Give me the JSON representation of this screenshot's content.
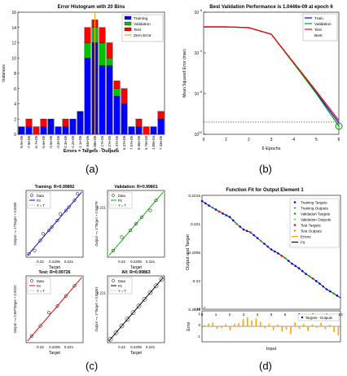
{
  "panels": {
    "a": {
      "caption": "(a)",
      "chart_data": {
        "type": "bar",
        "title": "Error Histogram with 20 Bins",
        "xlabel": "Errors = Targets - Outputs",
        "ylabel": "Instances",
        "ylim": [
          0,
          16
        ],
        "yticks": [
          "0",
          "2",
          "4",
          "6",
          "8",
          "10",
          "12",
          "14",
          "16"
        ],
        "categories": [
          "-8.9e-05",
          "-7.8e-05",
          "-6.7e-05",
          "-5.6e-05",
          "-4.5e-05",
          "-3.4e-05",
          "-2.3e-05",
          "-1.2e-05",
          "-1.1e-06",
          "9.84e-06",
          "2.08e-05",
          "3.17e-05",
          "4.27e-05",
          "5.37e-05",
          "6.47e-05",
          "7.57e-05",
          "8.66e-05",
          "9.76e-05",
          "1.09e-04",
          "7.33e-05"
        ],
        "series": [
          {
            "name": "Training",
            "color": "#0000ff",
            "values": [
              1,
              1,
              0,
              1,
              2,
              1,
              1,
              2,
              3,
              10,
              12,
              9,
              9,
              5,
              4,
              1,
              1,
              0,
              1,
              2
            ]
          },
          {
            "name": "Validation",
            "color": "#00c000",
            "values": [
              0,
              0,
              0,
              0,
              0,
              0,
              0,
              0,
              0,
              2,
              2,
              3,
              1,
              1,
              0,
              0,
              0,
              0,
              0,
              0
            ]
          },
          {
            "name": "Test",
            "color": "#ff0000",
            "values": [
              0,
              1,
              1,
              1,
              0,
              0,
              1,
              0,
              0,
              2,
              1,
              2,
              2,
              1,
              2,
              0,
              1,
              1,
              0,
              1
            ]
          }
        ],
        "zero_error_label": "Zero Error",
        "zero_error_color": "#ffa500",
        "zero_error_bin": 10,
        "legend_position": "top-right"
      }
    },
    "b": {
      "caption": "(b)",
      "chart_data": {
        "type": "line",
        "title": "Best Validation Performance is 1.0446e-09 at epoch 6",
        "xlabel": "6 Epochs",
        "ylabel": "Mean Squared Error (mse)",
        "x": [
          0,
          1,
          2,
          3,
          4,
          5,
          6
        ],
        "xticks": [
          "0",
          "1",
          "2",
          "3",
          "4",
          "5",
          "6"
        ],
        "ylim_log10": [
          -10,
          5
        ],
        "yticks": [
          {
            "label": "10",
            "exp": "5",
            "value_log10": 5
          },
          {
            "label": "10",
            "exp": "0",
            "value_log10": 0
          },
          {
            "label": "10",
            "exp": "-5",
            "value_log10": -5
          },
          {
            "label": "10",
            "exp": "-10",
            "value_log10": -10
          }
        ],
        "scale": "log",
        "series": [
          {
            "name": "Train",
            "color": "#0000ff",
            "values_log10": [
              3.2,
              3.2,
              3.1,
              2.3,
              -1.3,
              -4.9,
              -8.6
            ]
          },
          {
            "name": "Validation",
            "color": "#00a000",
            "values_log10": [
              3.2,
              3.2,
              3.1,
              2.3,
              -1.3,
              -5.0,
              -9.0
            ]
          },
          {
            "name": "Test",
            "color": "#ff0000",
            "values_log10": [
              3.2,
              3.2,
              3.1,
              2.3,
              -1.2,
              -4.7,
              -8.3
            ]
          }
        ],
        "best": {
          "label": "Best",
          "x": 6,
          "value_log10": -9.0,
          "color": "#00a000"
        },
        "goal_log10": -8.5,
        "legend_position": "top-right"
      }
    },
    "c": {
      "caption": "(c)",
      "chart_data": [
        {
          "type": "scatter",
          "title": "Training: R=0.99892",
          "xlabel": "Target",
          "ylabel": "Output ~= 1*Target + 0.0005",
          "xticks": [
            "0.22",
            "0.2205",
            "0.221"
          ],
          "yticks": [],
          "fit_color": "#0000ff",
          "legend": [
            "Data",
            "Fit",
            "Y = T"
          ],
          "points": [
            [
              0.2196,
              0.2196
            ],
            [
              0.2198,
              0.2197
            ],
            [
              0.22,
              0.22
            ],
            [
              0.2201,
              0.2202
            ],
            [
              0.2203,
              0.2203
            ],
            [
              0.2204,
              0.2204
            ],
            [
              0.2206,
              0.2206
            ],
            [
              0.2207,
              0.2208
            ],
            [
              0.2209,
              0.2209
            ],
            [
              0.221,
              0.221
            ],
            [
              0.2212,
              0.2212
            ],
            [
              0.2213,
              0.2214
            ]
          ]
        },
        {
          "type": "scatter",
          "title": "Validation: R=0.99801",
          "xlabel": "Target",
          "ylabel": "Output ~= 1*Target + 0.00079",
          "xticks": [
            "0.22",
            "0.2205",
            "0.221"
          ],
          "yticks": [
            "0.221"
          ],
          "fit_color": "#00c000",
          "legend": [
            "Data",
            "Fit",
            "Y = T"
          ],
          "points": [
            [
              0.2197,
              0.2197
            ],
            [
              0.22,
              0.2201
            ],
            [
              0.2203,
              0.2203
            ],
            [
              0.2205,
              0.2205
            ],
            [
              0.2207,
              0.2207
            ],
            [
              0.221,
              0.2209
            ],
            [
              0.2212,
              0.2212
            ]
          ]
        },
        {
          "type": "scatter",
          "title": "Test: R=0.99726",
          "xlabel": "Target",
          "ylabel": "Output ~= 0.99*Target + 0.0022",
          "xticks": [
            "0.22",
            "0.2205",
            "0.221"
          ],
          "yticks": [],
          "fit_color": "#ff0000",
          "legend": [
            "Data",
            "Fit",
            "Y = T"
          ],
          "points": [
            [
              0.2197,
              0.2197
            ],
            [
              0.22,
              0.22
            ],
            [
              0.2203,
              0.2204
            ],
            [
              0.2206,
              0.2206
            ],
            [
              0.2209,
              0.2209
            ],
            [
              0.2212,
              0.2212
            ]
          ]
        },
        {
          "type": "scatter",
          "title": "All: R=0.99863",
          "xlabel": "Target",
          "ylabel": "Output ~= 1*Target + 0.00051",
          "xticks": [
            "0.22",
            "0.2205",
            "0.221"
          ],
          "yticks": [
            "0.221"
          ],
          "fit_color": "#000000",
          "legend": [
            "Data",
            "Fit",
            "Y = T"
          ],
          "points": [
            [
              0.2196,
              0.2196
            ],
            [
              0.2198,
              0.2198
            ],
            [
              0.22,
              0.22
            ],
            [
              0.2202,
              0.2202
            ],
            [
              0.2204,
              0.2204
            ],
            [
              0.2206,
              0.2206
            ],
            [
              0.2208,
              0.2208
            ],
            [
              0.221,
              0.221
            ],
            [
              0.2212,
              0.2212
            ],
            [
              0.2214,
              0.2214
            ]
          ]
        }
      ]
    },
    "d": {
      "caption": "(d)",
      "chart_data": {
        "type": "line",
        "title": "Function Fit for Output Element 1",
        "ylabel": "Output and Target",
        "xlabel": "Input",
        "ylim": [
          0.2195,
          0.2215
        ],
        "yticks": [
          "0.2215",
          "0.221",
          "0.2205",
          "0.22",
          "0.2195"
        ],
        "xticks": [
          "0",
          "1",
          "2",
          "3",
          "4",
          "5",
          "6",
          "7",
          "8",
          "9",
          "10"
        ],
        "legend": [
          {
            "label": "Training Targets",
            "color": "#0000ff",
            "marker": "dot"
          },
          {
            "label": "Training Outputs",
            "color": "#0000ff",
            "marker": "plus"
          },
          {
            "label": "Validation Targets",
            "color": "#00c000",
            "marker": "dot"
          },
          {
            "label": "Validation Outputs",
            "color": "#00c000",
            "marker": "plus"
          },
          {
            "label": "Test Targets",
            "color": "#ff0000",
            "marker": "dot"
          },
          {
            "label": "Test Outputs",
            "color": "#ff0000",
            "marker": "plus"
          },
          {
            "label": "Errors",
            "color": "#ffa500",
            "marker": "line"
          },
          {
            "label": "Fit",
            "color": "#000000",
            "marker": "line"
          }
        ],
        "x": [
          0,
          0.5,
          1,
          1.5,
          2,
          2.5,
          3,
          3.5,
          4,
          4.5,
          5,
          5.5,
          6,
          6.5,
          7,
          7.5,
          8,
          8.5,
          9,
          9.5,
          10
        ],
        "fit": [
          0.2214,
          0.22132,
          0.22125,
          0.22118,
          0.22112,
          0.221,
          0.2209,
          0.22085,
          0.22075,
          0.22065,
          0.22055,
          0.22048,
          0.2204,
          0.2203,
          0.22022,
          0.22012,
          0.22004,
          0.21995,
          0.21985,
          0.21978,
          0.2197
        ],
        "error_panel": {
          "ylabel": "Error",
          "exponent_label": "x 10",
          "exponent": "-4",
          "legend": "Targets - Outputs",
          "yticks": [
            "1",
            "0",
            "-1"
          ],
          "values": [
            0.1,
            0.22,
            0.3,
            -0.2,
            -0.12,
            0.15,
            -0.3,
            0.2,
            0.25,
            0.55,
            0.7,
            0.45,
            0.6,
            0.35,
            -0.15,
            0.2,
            -0.3,
            0.12,
            -0.4,
            -0.25,
            -0.6,
            0.3,
            -0.2,
            0.18,
            -0.35,
            0.15,
            -0.1,
            0.28,
            -0.22,
            0.12,
            -0.45,
            -0.7
          ]
        }
      }
    }
  }
}
